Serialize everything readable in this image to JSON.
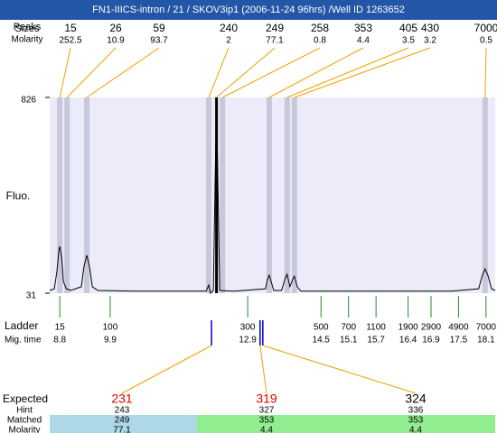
{
  "chart_data": {
    "type": "electropherogram",
    "title": "FN1-IIICS-intron / 21 / SKOV3ip1 (2006-11-24 96hrs) /Well ID 1263652",
    "title_background": "#2456a8",
    "ylabel": "Fluo.",
    "ylim": [
      31,
      826
    ],
    "yticks": [
      31,
      826
    ],
    "xlim": [
      8.58,
      18.3
    ],
    "background": "#ebebfa",
    "trace": {
      "color": "#000000",
      "x": [
        8.58,
        8.68,
        8.74,
        8.78,
        8.8,
        8.84,
        8.88,
        8.94,
        9.04,
        9.27,
        9.33,
        9.39,
        9.45,
        9.51,
        9.63,
        10.46,
        11.44,
        11.99,
        12.05,
        12.09,
        12.15,
        12.19,
        12.22,
        12.25,
        12.29,
        12.62,
        13.29,
        13.33,
        13.37,
        13.41,
        13.47,
        13.64,
        13.72,
        13.76,
        13.82,
        13.88,
        13.92,
        13.98,
        14.06,
        15.38,
        17.35,
        17.94,
        18.02,
        18.08,
        18.14,
        18.22,
        18.3
      ],
      "y": [
        42,
        49,
        122,
        203,
        221,
        177,
        78,
        49,
        42,
        57,
        141,
        185,
        137,
        57,
        42,
        39,
        39,
        39,
        64,
        31,
        42,
        488,
        819,
        488,
        42,
        39,
        49,
        86,
        104,
        78,
        42,
        42,
        93,
        108,
        57,
        86,
        100,
        57,
        39,
        39,
        39,
        49,
        104,
        130,
        104,
        49,
        42
      ]
    },
    "peak_header": [
      "Peaks",
      "Sizes"
    ],
    "molarity_label": "Molarity",
    "peak_line_color": "#f0a000",
    "peaks": {
      "sizes": [
        15,
        26,
        59,
        240,
        249,
        258,
        353,
        405,
        430,
        7000
      ],
      "molarity": [
        252.5,
        10.9,
        93.7,
        2,
        77.1,
        0.8,
        4.4,
        3.5,
        3.2,
        0.5
      ],
      "x": [
        8.8,
        8.96,
        9.39,
        12.05,
        12.22,
        12.35,
        13.37,
        13.76,
        13.92,
        18.08
      ],
      "colors": [
        "#c8c8dc",
        "#c8c8dc",
        "#c8c8dc",
        "#c8c8dc",
        "#000000",
        "#c8c8dc",
        "#c8c8dc",
        "#c8c8dc",
        "#c8c8dc",
        "#c8c8dc"
      ]
    },
    "ladder": {
      "label": "Ladder",
      "time_label": "Mig. time",
      "color": "#2a8a2a",
      "sizes": [
        15,
        100,
        300,
        500,
        700,
        1100,
        1900,
        2900,
        4900,
        7000
      ],
      "times": [
        8.8,
        9.9,
        12.9,
        14.5,
        15.1,
        15.7,
        16.4,
        16.9,
        17.5,
        18.1
      ]
    },
    "expected": {
      "labels": [
        "Expected",
        "Hint",
        "Matched",
        "Molarity"
      ],
      "marker_color": "#0000cc",
      "x": [
        12.11,
        13.17,
        13.23
      ],
      "expected": [
        231,
        319,
        324
      ],
      "colors": [
        "#e00000",
        "#e00000",
        "#000000"
      ],
      "hint": [
        243,
        327,
        336
      ],
      "matched": [
        249,
        353,
        353
      ],
      "molarity": [
        77.1,
        4.4,
        4.4
      ],
      "match_colors": [
        "#add8e6",
        "#90ee90",
        "#90ee90"
      ]
    }
  }
}
